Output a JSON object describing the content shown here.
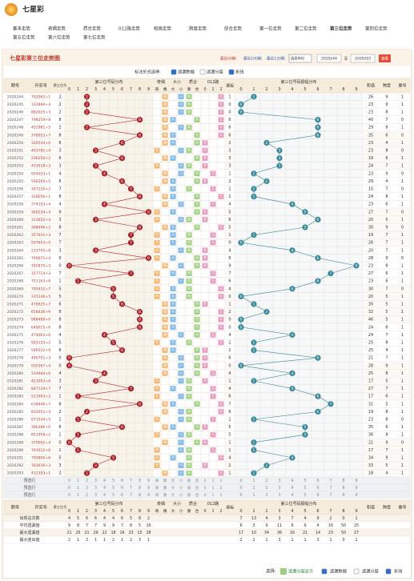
{
  "logo_title": "七星彩",
  "nav": [
    "基本走势",
    "奇偶走势",
    "质合走势",
    "012路走势",
    "和值走势",
    "跨度走势",
    "综合走势",
    "第一位走势",
    "第二位走势",
    "第三位走势",
    "第四位走势",
    "第五位走势",
    "第六位走势",
    "第七位走势"
  ],
  "panel": {
    "title": "七星彩第三位走势图",
    "quick": [
      "最近50期",
      "最近100期",
      "最近120期"
    ],
    "select": "选择年份",
    "from": "2020244",
    "to_label": "至",
    "to": "2020293",
    "button": "查看"
  },
  "options": {
    "label": "标注形式选择:",
    "items": [
      "遗漏数据",
      "遗漏分层",
      "折线"
    ],
    "checked": [
      true,
      false,
      true
    ]
  },
  "table": {
    "headers": {
      "issue": "期号",
      "number": "开奖号",
      "digit": "第三位号",
      "dist": "第三位号码分布",
      "digits": [
        "0",
        "1",
        "2",
        "3",
        "4",
        "5",
        "6",
        "7",
        "8",
        "9"
      ],
      "groups": [
        {
          "name": "奇偶",
          "cols": [
            "奇",
            "偶"
          ]
        },
        {
          "name": "大小",
          "cols": [
            "大",
            "小"
          ]
        },
        {
          "name": "质合",
          "cols": [
            "质",
            "合"
          ]
        },
        {
          "name": "012路",
          "cols": [
            "0",
            "1",
            "2"
          ]
        }
      ],
      "amp": "振幅",
      "amp_dist": "第三位号码振幅分布",
      "sum": "和值",
      "span": "跨度",
      "repeat": "重号"
    },
    "rows": [
      [
        "2020244",
        "792062+1",
        2,
        1,
        26,
        9,
        1
      ],
      [
        "2020245",
        "132890+4",
        2,
        0,
        23,
        9,
        1
      ],
      [
        "2020246",
        "862025+3",
        2,
        0,
        23,
        8,
        1
      ],
      [
        "2020247",
        "798259+8",
        8,
        6,
        40,
        7,
        0
      ],
      [
        "2020248",
        "452981+5",
        2,
        6,
        29,
        8,
        1
      ],
      [
        "2020249",
        "378953+7",
        8,
        6,
        35,
        6,
        0
      ],
      [
        "2020250",
        "326534+6",
        6,
        2,
        23,
        4,
        1
      ],
      [
        "2020251",
        "403781+4",
        3,
        3,
        23,
        8,
        0
      ],
      [
        "2020252",
        "236250+2",
        6,
        3,
        18,
        6,
        1
      ],
      [
        "2020253",
        "433518+3",
        3,
        3,
        24,
        7,
        1
      ],
      [
        "2020254",
        "954023+1",
        4,
        1,
        23,
        9,
        0
      ],
      [
        "2020255",
        "556265+5",
        6,
        2,
        29,
        4,
        1
      ],
      [
        "2020256",
        "307230+2",
        7,
        1,
        15,
        7,
        0
      ],
      [
        "2020257",
        "328056+1",
        8,
        1,
        24,
        8,
        1
      ],
      [
        "2020258",
        "374153+4",
        4,
        4,
        23,
        6,
        1
      ],
      [
        "2020259",
        "369234+4",
        9,
        5,
        27,
        7,
        0
      ],
      [
        "2020260",
        "313652+4",
        3,
        6,
        20,
        5,
        1
      ],
      [
        "2020261",
        "308496+2",
        8,
        5,
        30,
        9,
        0
      ],
      [
        "2020262",
        "357031+3",
        7,
        1,
        19,
        7,
        1
      ],
      [
        "2020263",
        "507653+5",
        7,
        0,
        26,
        7,
        1
      ],
      [
        "2020264",
        "233705+8",
        3,
        4,
        20,
        7,
        1
      ],
      [
        "2020265",
        "749071+4",
        9,
        6,
        28,
        9,
        0
      ],
      [
        "2020266",
        "350870+3",
        0,
        9,
        23,
        8,
        1
      ],
      [
        "2020267",
        "357714+3",
        7,
        7,
        27,
        6,
        1
      ],
      [
        "2020268",
        "751163+6",
        1,
        6,
        23,
        6,
        1
      ],
      [
        "2020269",
        "795432+7",
        5,
        4,
        30,
        7,
        0
      ],
      [
        "2020270",
        "315146+5",
        5,
        0,
        20,
        5,
        1
      ],
      [
        "2020271",
        "476625+7",
        6,
        1,
        30,
        5,
        1
      ],
      [
        "2020272",
        "658436+9",
        8,
        2,
        32,
        5,
        1
      ],
      [
        "2020273",
        "988489+0",
        8,
        0,
        46,
        5,
        1
      ],
      [
        "2020274",
        "648015+6",
        8,
        0,
        24,
        8,
        1
      ],
      [
        "2020275",
        "474063+6",
        4,
        4,
        24,
        7,
        1
      ],
      [
        "2020276",
        "925153+2",
        5,
        1,
        25,
        8,
        1
      ],
      [
        "2020277",
        "546532+9",
        6,
        1,
        25,
        4,
        1
      ],
      [
        "2020278",
        "440751+3",
        0,
        6,
        21,
        7,
        1
      ],
      [
        "2020279",
        "930367+4",
        0,
        0,
        28,
        9,
        1
      ],
      [
        "2020280",
        "314944+6",
        4,
        4,
        25,
        8,
        1
      ],
      [
        "2020281",
        "423053+6",
        3,
        1,
        17,
        5,
        1
      ],
      [
        "2020282",
        "847134+7",
        7,
        4,
        27,
        7,
        1
      ],
      [
        "2020283",
        "521603+2",
        1,
        6,
        17,
        6,
        1
      ],
      [
        "2020284",
        "638446+7",
        8,
        7,
        31,
        5,
        1
      ],
      [
        "2020285",
        "832051+4",
        2,
        6,
        19,
        8,
        1
      ],
      [
        "2020286",
        "871034+5",
        1,
        1,
        23,
        8,
        0
      ],
      [
        "2020287",
        "396386+0",
        6,
        5,
        35,
        6,
        1
      ],
      [
        "2020288",
        "851958+2",
        1,
        5,
        36,
        8,
        1
      ],
      [
        "2020289",
        "370092+4",
        0,
        1,
        21,
        9,
        0
      ],
      [
        "2020290",
        "761012+6",
        1,
        1,
        17,
        7,
        1
      ],
      [
        "2020291",
        "795805+6",
        5,
        4,
        34,
        9,
        1
      ],
      [
        "2020292",
        "783636+3",
        3,
        2,
        33,
        5,
        1
      ],
      [
        "2020293",
        "412353+1",
        2,
        1,
        18,
        4,
        1
      ]
    ],
    "preselect": "预选行",
    "stats": [
      {
        "label": "出现总次数",
        "dist": [
          4,
          5,
          6,
          6,
          4,
          4,
          6,
          5,
          8,
          2
        ],
        "amp": [
          7,
          13,
          4,
          3,
          7,
          4,
          9,
          2,
          0,
          1
        ]
      },
      {
        "label": "平均遗漏值",
        "dist": [
          9,
          8,
          7,
          7,
          9,
          9,
          7,
          8,
          5,
          16
        ],
        "amp": [
          6,
          3,
          9,
          11,
          6,
          9,
          4,
          16,
          50,
          25
        ]
      },
      {
        "label": "最大遗漏值",
        "dist": [
          21,
          25,
          21,
          29,
          22,
          18,
          16,
          23,
          15,
          28
        ],
        "amp": [
          17,
          10,
          34,
          36,
          16,
          21,
          14,
          23,
          50,
          27
        ]
      },
      {
        "label": "最大连出值",
        "dist": [
          2,
          1,
          3,
          1,
          1,
          2,
          1,
          2,
          3,
          1
        ],
        "amp": [
          2,
          2,
          1,
          3,
          1,
          1,
          3,
          1,
          0,
          1
        ]
      }
    ]
  },
  "footer": {
    "label": "选择:",
    "items": [
      "遗漏分层显示",
      "遗漏数据",
      "遗漏分层",
      "折线"
    ],
    "checked": [
      true,
      true,
      false,
      true
    ]
  }
}
